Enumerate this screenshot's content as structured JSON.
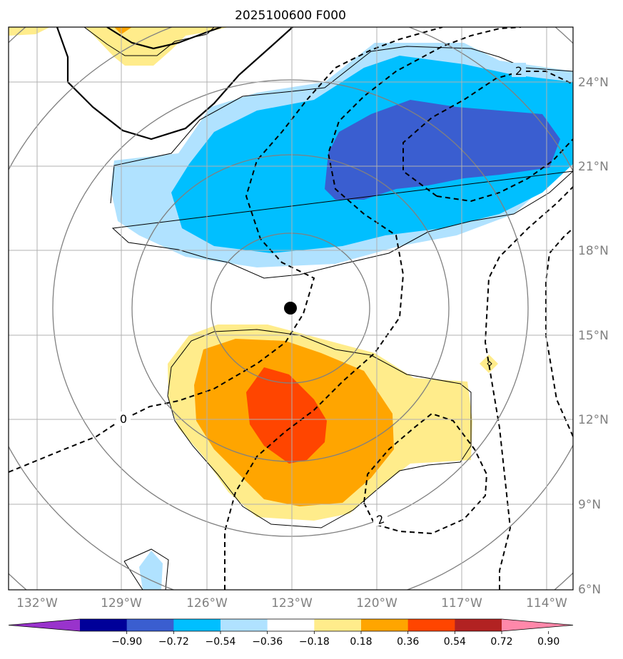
{
  "title": "2025100600 F000",
  "map": {
    "lon_labels": [
      "132°W",
      "129°W",
      "126°W",
      "123°W",
      "120°W",
      "117°W",
      "114°W"
    ],
    "lat_labels": [
      "6°N",
      "9°N",
      "12°N",
      "15°N",
      "18°N",
      "21°N",
      "24°N"
    ],
    "center_marker": {
      "lon": -123,
      "lat": 16
    },
    "contour_labels": [
      {
        "text": "0",
        "kind": "dashed"
      },
      {
        "text": "2",
        "kind": "dashed"
      },
      {
        "text": "2",
        "kind": "dashed"
      }
    ],
    "colors": {
      "gridline": "#b0b0b0",
      "range_ring": "#808080",
      "marker": "#000000"
    }
  },
  "colorbar": {
    "levels": [
      "−0.90",
      "−0.72",
      "−0.54",
      "−0.36",
      "−0.18",
      "0.18",
      "0.36",
      "0.54",
      "0.72",
      "0.90"
    ],
    "colors": [
      "#9933cc",
      "#000099",
      "#3a5ed0",
      "#00bfff",
      "#b0e2ff",
      "#ffffff",
      "#ffec8b",
      "#ffa500",
      "#ff4500",
      "#b22222",
      "#ff88aa"
    ]
  }
}
